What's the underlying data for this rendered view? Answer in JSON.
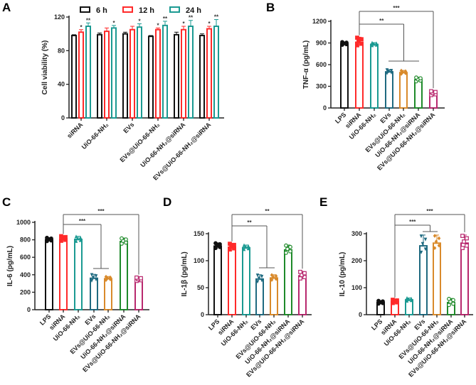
{
  "chart_data": [
    {
      "panel": "A",
      "type": "bar",
      "ylabel": "Cell viability (%)",
      "ylim": [
        0,
        120
      ],
      "yticks": [
        0,
        40,
        80,
        120
      ],
      "categories": [
        "siRNA",
        "UiO-66-NH₂",
        "EVs",
        "EVs@UiO-66-NH₂",
        "UiO-66-NH₂@siRNA",
        "EVs@UiO-66-NH₂@siRNA"
      ],
      "legend": {
        "position": "top",
        "entries": [
          "6 h",
          "12 h",
          "24 h"
        ]
      },
      "series": [
        {
          "name": "6 h",
          "color": "#111111",
          "values": [
            98,
            99,
            100,
            97,
            99,
            98
          ],
          "sd": [
            1,
            2,
            2,
            1,
            3,
            2
          ],
          "stars": [
            "",
            "",
            "",
            "",
            "",
            ""
          ]
        },
        {
          "name": "12 h",
          "color": "#ff2a2a",
          "values": [
            102,
            103,
            105,
            105,
            105,
            106
          ],
          "sd": [
            3,
            4,
            4,
            2,
            4,
            3
          ],
          "stars": [
            "*",
            "",
            "",
            "*",
            "*",
            "*"
          ]
        },
        {
          "name": "24 h",
          "color": "#1b9a92",
          "values": [
            109,
            107,
            108,
            110,
            109,
            109
          ],
          "sd": [
            4,
            3,
            4,
            5,
            7,
            8
          ],
          "stars": [
            "**",
            "*",
            "*",
            "**",
            "**",
            "**"
          ]
        }
      ]
    },
    {
      "panel": "B",
      "type": "bar",
      "ylabel": "TNF-α (pg/mL)",
      "ylim": [
        0,
        1200
      ],
      "yticks": [
        0,
        300,
        600,
        900,
        1200
      ],
      "categories": [
        "LPS",
        "siRNA",
        "UiO-66-NH₂",
        "EVs",
        "EVs@UiO-66-NH₂",
        "UiO-66-NH₂@siRNA",
        "EVs@UiO-66-NH₂@siRNA"
      ],
      "values": [
        890,
        910,
        880,
        500,
        490,
        390,
        200
      ],
      "sd": [
        25,
        70,
        25,
        30,
        30,
        35,
        35
      ],
      "colors": [
        "#111111",
        "#ff2a2a",
        "#1b9a92",
        "#1f6a80",
        "#d98a2b",
        "#1f8a2a",
        "#b8286e"
      ],
      "annotations": [
        {
          "label": "***",
          "from": 1,
          "to": [
            6,
            6
          ]
        },
        {
          "label": "**",
          "from": 1,
          "to": [
            3,
            5
          ]
        }
      ]
    },
    {
      "panel": "C",
      "type": "bar",
      "ylabel": "IL-6 (pg/mL)",
      "ylim": [
        0,
        1000
      ],
      "yticks": [
        0,
        200,
        400,
        600,
        800,
        1000
      ],
      "categories": [
        "LPS",
        "siRNA",
        "UiO-66-NH₂",
        "EVs",
        "EVs@UiO-66-NH₂",
        "UiO-66-NH₂@siRNA",
        "EVs@UiO-66-NH₂@siRNA"
      ],
      "values": [
        800,
        810,
        805,
        360,
        355,
        780,
        345
      ],
      "sd": [
        25,
        35,
        35,
        45,
        25,
        40,
        25
      ],
      "colors": [
        "#111111",
        "#ff2a2a",
        "#1b9a92",
        "#1f6a80",
        "#d98a2b",
        "#1f8a2a",
        "#b8286e"
      ],
      "annotations": [
        {
          "label": "***",
          "from": 1,
          "to": [
            6,
            6
          ]
        },
        {
          "label": "***",
          "from": 1,
          "to": [
            3,
            4
          ]
        }
      ]
    },
    {
      "panel": "D",
      "type": "bar",
      "ylabel": "IL-1β (pg/mL)",
      "ylim": [
        0,
        150
      ],
      "yticks": [
        0,
        50,
        100,
        150
      ],
      "categories": [
        "LPS",
        "siRNA",
        "UiO-66-NH₂",
        "EVs",
        "EVs@UiO-66-NH₂",
        "UiO-66-NH₂@siRNA",
        "EVs@UiO-66-NH₂@siRNA"
      ],
      "values": [
        127,
        125,
        124,
        66,
        68,
        120,
        72
      ],
      "sd": [
        6,
        7,
        5,
        8,
        6,
        9,
        8
      ],
      "colors": [
        "#111111",
        "#ff2a2a",
        "#1b9a92",
        "#1f6a80",
        "#d98a2b",
        "#1f8a2a",
        "#b8286e"
      ],
      "annotations": [
        {
          "label": "**",
          "from": 1,
          "to": [
            6,
            6
          ]
        },
        {
          "label": "**",
          "from": 1,
          "to": [
            3,
            4
          ]
        }
      ]
    },
    {
      "panel": "E",
      "type": "bar",
      "ylabel": "IL-10 (pg/mL)",
      "ylim": [
        0,
        300
      ],
      "yticks": [
        0,
        100,
        200,
        300
      ],
      "categories": [
        "LPS",
        "siRNA",
        "UiO-66-NH₂",
        "EVs",
        "EVs@UiO-66-NH₂",
        "UiO-66-NH₂@siRNA",
        "EVs@UiO-66-NH₂@siRNA"
      ],
      "values": [
        45,
        48,
        55,
        255,
        265,
        45,
        265
      ],
      "sd": [
        7,
        8,
        7,
        40,
        30,
        15,
        30
      ],
      "colors": [
        "#111111",
        "#ff2a2a",
        "#1b9a92",
        "#1f6a80",
        "#d98a2b",
        "#1f8a2a",
        "#b8286e"
      ],
      "annotations": [
        {
          "label": "***",
          "from": 1,
          "to": [
            6,
            6
          ]
        },
        {
          "label": "***",
          "from": 1,
          "to": [
            3,
            4
          ]
        }
      ]
    }
  ]
}
